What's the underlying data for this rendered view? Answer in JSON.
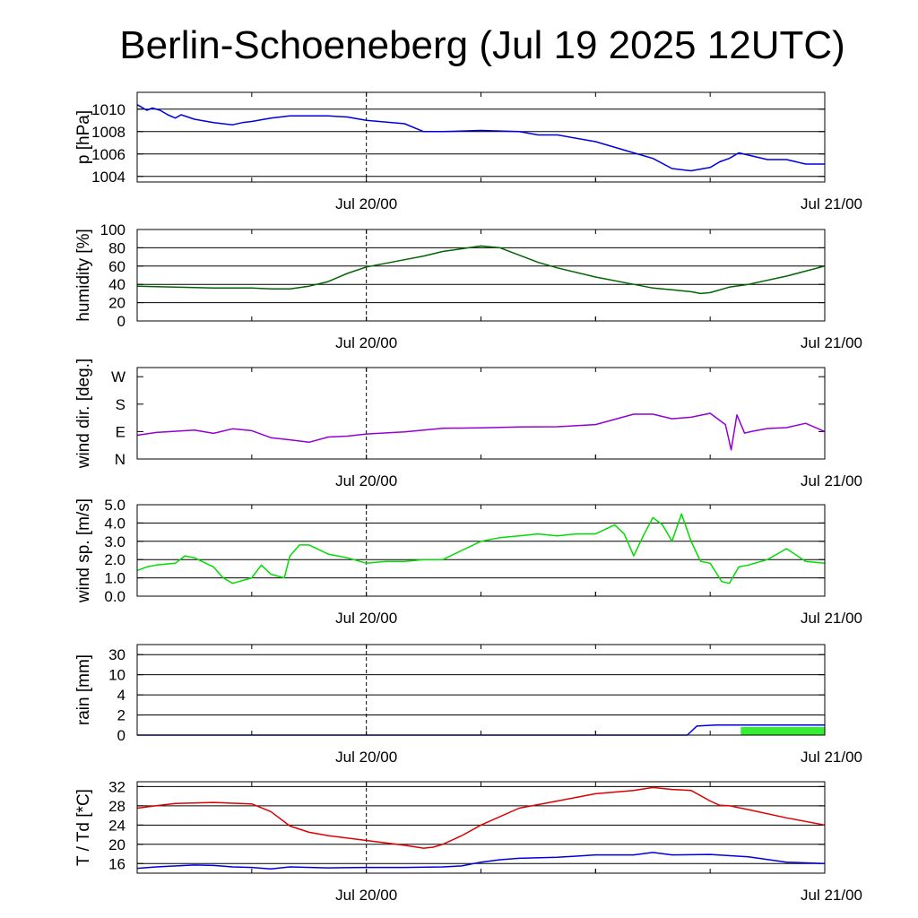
{
  "title": "Berlin-Schoeneberg (Jul 19 2025 12UTC)",
  "x_tick_labels": [
    "Jul 20/00",
    "Jul 21/00"
  ],
  "chart_data": [
    {
      "type": "line",
      "ylabel": "p [hPa]",
      "ylim": [
        1003.5,
        1011.5
      ],
      "yticks": [
        1004,
        1006,
        1008,
        1010
      ],
      "ytick_labels": [
        "1004",
        "1006",
        "1008",
        "1010"
      ],
      "grid": true,
      "series": [
        {
          "color": "#0000dd",
          "x": [
            12,
            12.2,
            12.5,
            12.8,
            13.2,
            13.6,
            14,
            14.3,
            15,
            16,
            17,
            17.5,
            18,
            19,
            20,
            22,
            23,
            24,
            26,
            27,
            28,
            30,
            32,
            33,
            34,
            36,
            38,
            39,
            40,
            41,
            42,
            42.5,
            43,
            43.5,
            44,
            45,
            46,
            47,
            48
          ],
          "y": [
            1010.4,
            1010.2,
            1009.9,
            1010.1,
            1009.9,
            1009.5,
            1009.2,
            1009.5,
            1009.1,
            1008.8,
            1008.6,
            1008.8,
            1008.9,
            1009.2,
            1009.4,
            1009.4,
            1009.3,
            1009.0,
            1008.7,
            1008.0,
            1008.0,
            1008.1,
            1008.0,
            1007.7,
            1007.7,
            1007.1,
            1006.1,
            1005.6,
            1004.7,
            1004.5,
            1004.8,
            1005.3,
            1005.6,
            1006.1,
            1005.9,
            1005.5,
            1005.5,
            1005.1,
            1005.1
          ]
        }
      ]
    },
    {
      "type": "line",
      "ylabel": "humidity [%]",
      "ylim": [
        0,
        100
      ],
      "yticks": [
        0,
        20,
        40,
        60,
        80,
        100
      ],
      "ytick_labels": [
        "0",
        "20",
        "40",
        "60",
        "80",
        "100"
      ],
      "grid": true,
      "series": [
        {
          "color": "#006400",
          "x": [
            12,
            14,
            16,
            18,
            19,
            20,
            21,
            22,
            23,
            24,
            26,
            27,
            28,
            30,
            31,
            32,
            33,
            34,
            36,
            38,
            39,
            40,
            41,
            41.5,
            42,
            43,
            44,
            46,
            48
          ],
          "y": [
            38,
            37,
            36,
            36,
            35,
            35,
            38,
            43,
            52,
            59,
            67,
            71,
            76,
            82,
            80,
            72,
            64,
            58,
            48,
            40,
            36,
            34,
            32,
            30,
            31,
            37,
            40,
            49,
            60
          ]
        }
      ]
    },
    {
      "type": "line",
      "ylabel": "wind dir. [deg.]",
      "ylim": [
        0,
        300
      ],
      "yticks": [
        0,
        90,
        180,
        270
      ],
      "ytick_labels": [
        "N",
        "E",
        "S",
        "W"
      ],
      "grid": false,
      "series": [
        {
          "color": "#9400d3",
          "x": [
            12,
            13,
            15,
            16,
            17,
            18,
            19,
            20,
            21,
            22,
            23,
            24,
            26,
            28,
            30,
            32,
            34,
            36,
            38,
            39,
            40,
            41,
            42,
            42.8,
            43.1,
            43.4,
            43.8,
            44.2,
            45,
            46,
            47,
            48
          ],
          "y": [
            78,
            87,
            95,
            84,
            99,
            93,
            70,
            63,
            55,
            72,
            75,
            82,
            89,
            101,
            102,
            105,
            106,
            113,
            147,
            147,
            132,
            137,
            150,
            113,
            30,
            145,
            85,
            91,
            100,
            103,
            117,
            90
          ]
        }
      ]
    },
    {
      "type": "line",
      "ylabel": "wind sp. [m/s]",
      "ylim": [
        0,
        5
      ],
      "yticks": [
        0,
        1,
        2,
        3,
        4,
        5
      ],
      "ytick_labels": [
        "0.0",
        "1.0",
        "2.0",
        "3.0",
        "4.0",
        "5.0"
      ],
      "grid": true,
      "series": [
        {
          "color": "#00dd00",
          "x": [
            12,
            12.5,
            13,
            14,
            14.5,
            15,
            16,
            16.5,
            17,
            18,
            18.5,
            19,
            19.7,
            20,
            20.5,
            21,
            22,
            23,
            24,
            25,
            26,
            27,
            28,
            29,
            30,
            31,
            32,
            33,
            34,
            35,
            36,
            37,
            37.5,
            38,
            38.5,
            39,
            39.5,
            40,
            40.5,
            41,
            41.5,
            42,
            42.3,
            42.6,
            43,
            43.5,
            44,
            45,
            46,
            47,
            48
          ],
          "y": [
            1.4,
            1.6,
            1.7,
            1.8,
            2.2,
            2.1,
            1.6,
            1.0,
            0.7,
            1.0,
            1.7,
            1.2,
            1.0,
            2.2,
            2.8,
            2.8,
            2.3,
            2.1,
            1.8,
            1.9,
            1.9,
            2.0,
            2.0,
            2.5,
            3.0,
            3.2,
            3.3,
            3.4,
            3.3,
            3.4,
            3.4,
            3.9,
            3.4,
            2.2,
            3.3,
            4.3,
            3.9,
            3.0,
            4.5,
            3.0,
            1.9,
            1.8,
            1.3,
            0.8,
            0.7,
            1.6,
            1.7,
            2.0,
            2.6,
            1.9,
            1.8
          ]
        }
      ]
    },
    {
      "type": "area",
      "ylabel": "rain [mm]",
      "ylim": [
        0,
        30
      ],
      "yticks": [
        0,
        2,
        4,
        10,
        30
      ],
      "ytick_labels": [
        "0",
        "2",
        "4",
        "10",
        "30"
      ],
      "grid": true,
      "series": [
        {
          "name": "",
          "color": "#0000dd",
          "kind": "line",
          "x": [
            12,
            40.8,
            41.3,
            42.3,
            48
          ],
          "y": [
            0,
            0,
            0.9,
            1.0,
            1.0
          ]
        },
        {
          "name": "",
          "color": "#33ee33",
          "kind": "area",
          "x": [
            43.6,
            48
          ],
          "y": [
            0.8,
            0.8
          ]
        }
      ]
    },
    {
      "type": "line",
      "ylabel": "T / Td [*C]",
      "ylim": [
        14,
        33
      ],
      "yticks": [
        16,
        20,
        24,
        28,
        32
      ],
      "ytick_labels": [
        "16",
        "20",
        "24",
        "28",
        "32"
      ],
      "grid": true,
      "series": [
        {
          "color": "#dd0000",
          "x": [
            12,
            13,
            14,
            16,
            18,
            19,
            20,
            21,
            22,
            24,
            26,
            27,
            27.5,
            28,
            29,
            30,
            32,
            34,
            36,
            38,
            39,
            40,
            41,
            42,
            42.5,
            43,
            44,
            46,
            48
          ],
          "y": [
            27.5,
            28,
            28.5,
            28.7,
            28.4,
            26.8,
            23.8,
            22.5,
            21.8,
            20.8,
            19.8,
            19.2,
            19.4,
            20.0,
            21.8,
            24.0,
            27.5,
            29.0,
            30.5,
            31.2,
            31.8,
            31.4,
            31.2,
            29.0,
            28.1,
            28.0,
            27.2,
            25.5,
            24.0
          ]
        },
        {
          "color": "#0000dd",
          "x": [
            12,
            13,
            15,
            16,
            17,
            18,
            19,
            20,
            22,
            24,
            26,
            28,
            29,
            30,
            31,
            32,
            34,
            36,
            38,
            39,
            40,
            42,
            44,
            46,
            48
          ],
          "y": [
            15.0,
            15.3,
            15.7,
            15.6,
            15.3,
            15.2,
            14.9,
            15.3,
            15.1,
            15.2,
            15.2,
            15.3,
            15.5,
            16.3,
            16.8,
            17.1,
            17.3,
            17.8,
            17.8,
            18.3,
            17.8,
            17.9,
            17.4,
            16.3,
            16.0
          ]
        }
      ]
    }
  ]
}
